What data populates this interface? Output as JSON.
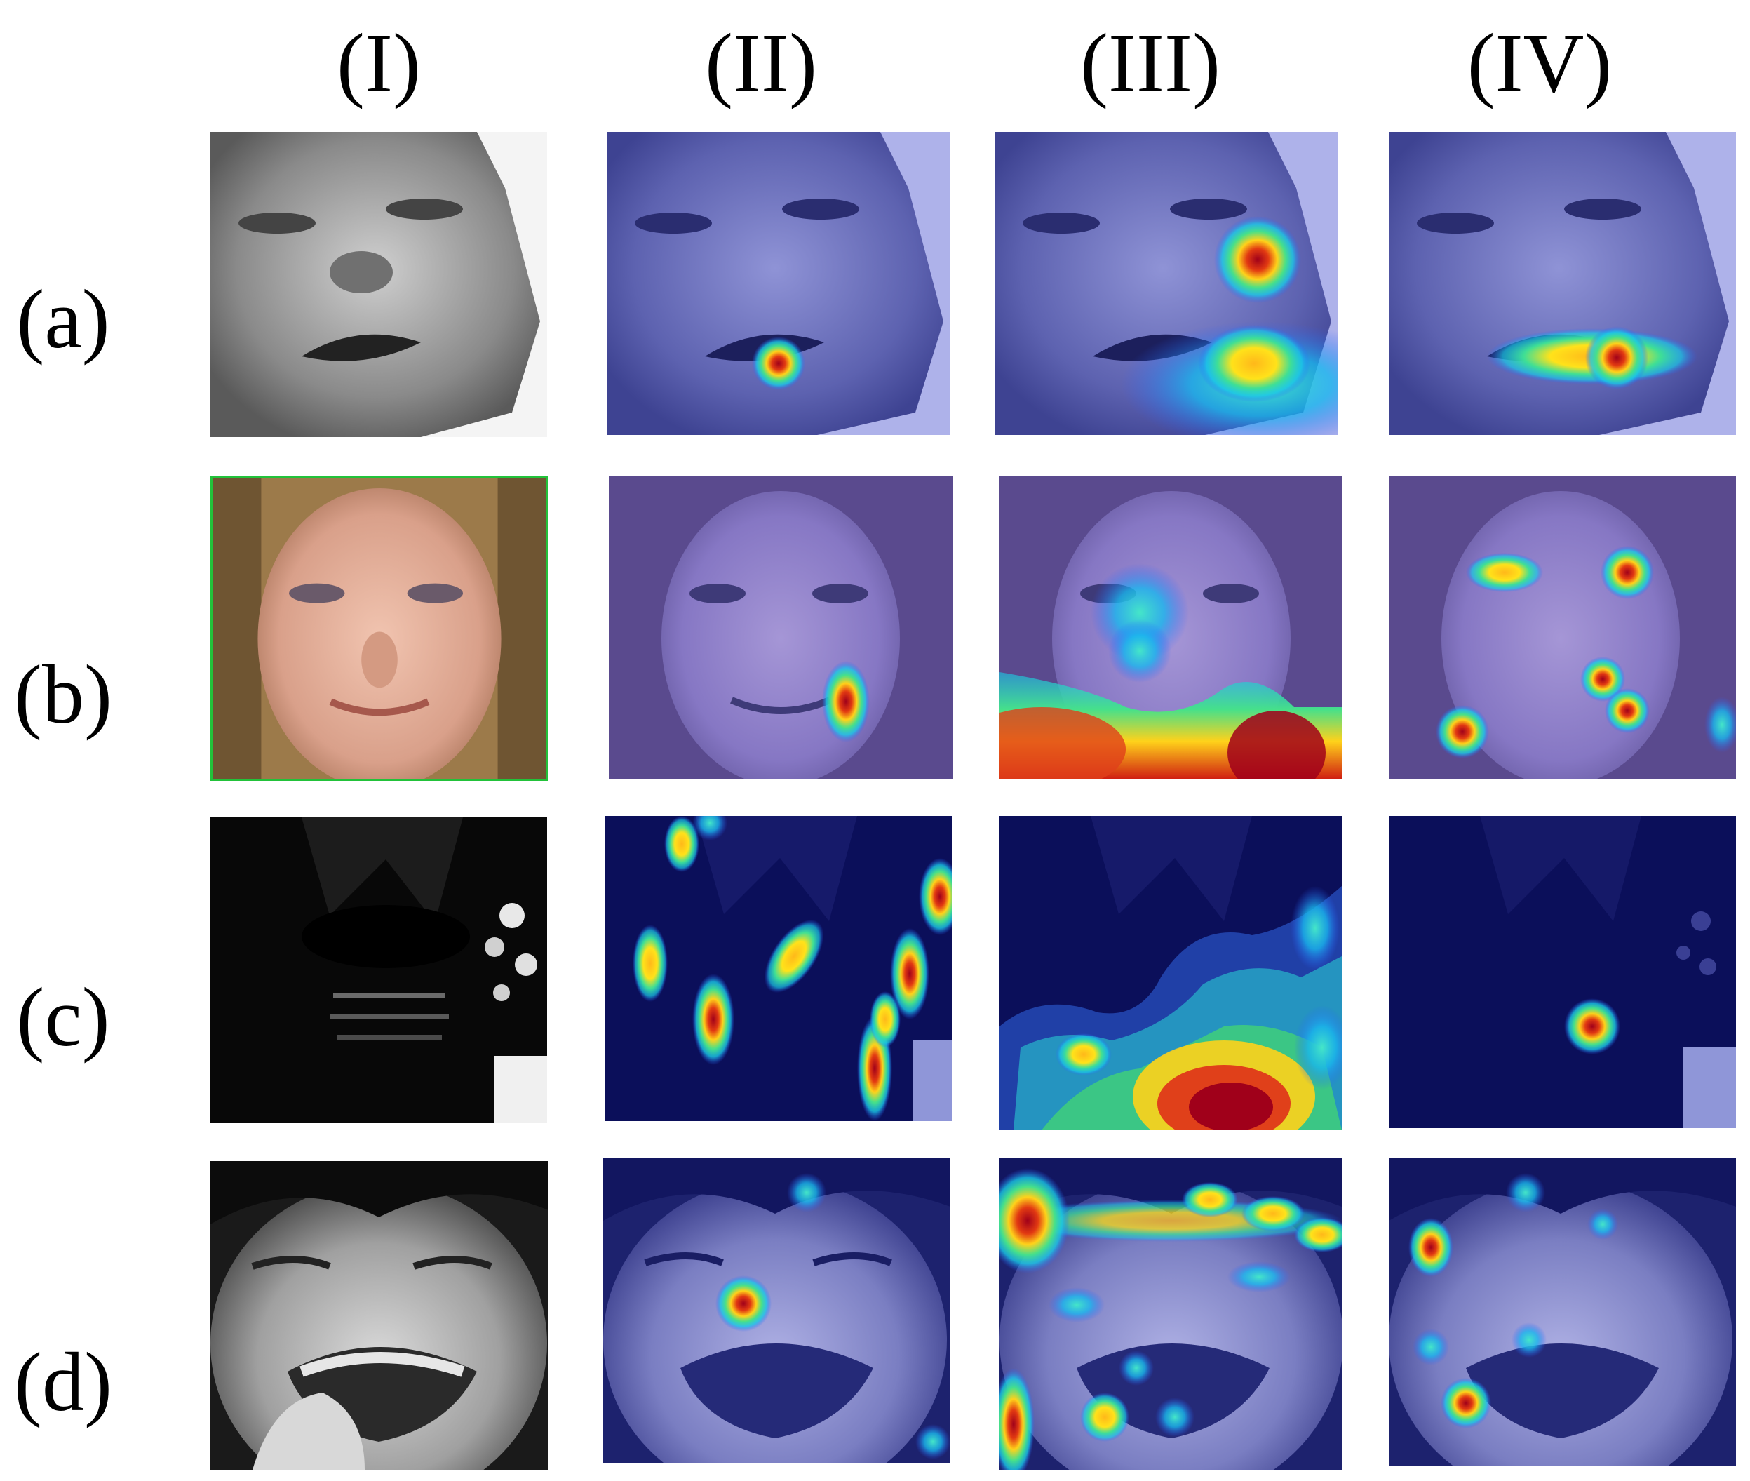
{
  "figure": {
    "columns": [
      "(I)",
      "(II)",
      "(III)",
      "(IV)"
    ],
    "rows": [
      "(a)",
      "(b)",
      "(c)",
      "(d)"
    ]
  },
  "colors": {
    "overlay_blue": "#6c72c8",
    "dark_navy": "#0b0f5a",
    "heat_red": "#b3001a",
    "heat_yellow": "#ffe21a",
    "heat_cyan": "#19d9e6"
  }
}
